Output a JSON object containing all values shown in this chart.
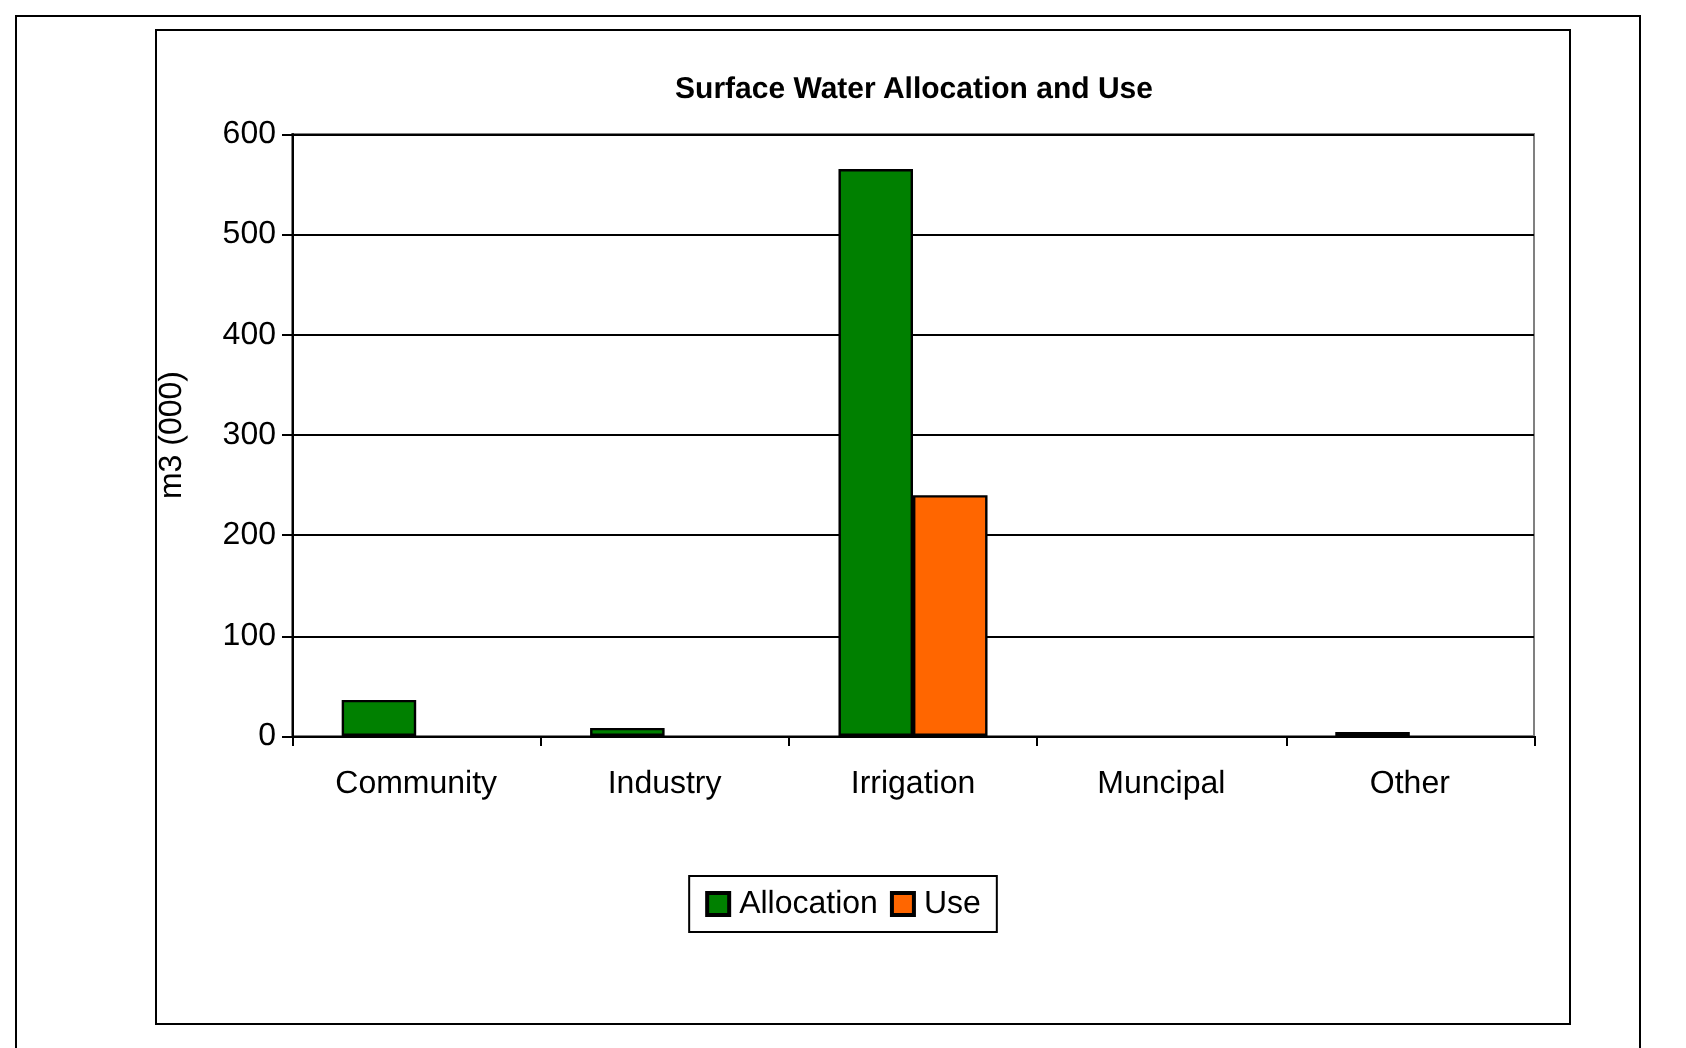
{
  "chart_data": {
    "type": "bar",
    "title": "Surface Water Allocation and Use",
    "ylabel": "m3 (000)",
    "categories": [
      "Community",
      "Industry",
      "Irrigation",
      "Muncipal",
      "Other"
    ],
    "series": [
      {
        "name": "Allocation",
        "color": "#008000",
        "values": [
          36,
          8,
          565,
          null,
          4
        ]
      },
      {
        "name": "Use",
        "color": "#ff6600",
        "values": [
          null,
          null,
          240,
          null,
          null
        ]
      }
    ],
    "ylim": [
      0,
      600
    ],
    "yticks": [
      0,
      100,
      200,
      300,
      400,
      500,
      600
    ],
    "grid": "y",
    "legend": "bottom"
  }
}
